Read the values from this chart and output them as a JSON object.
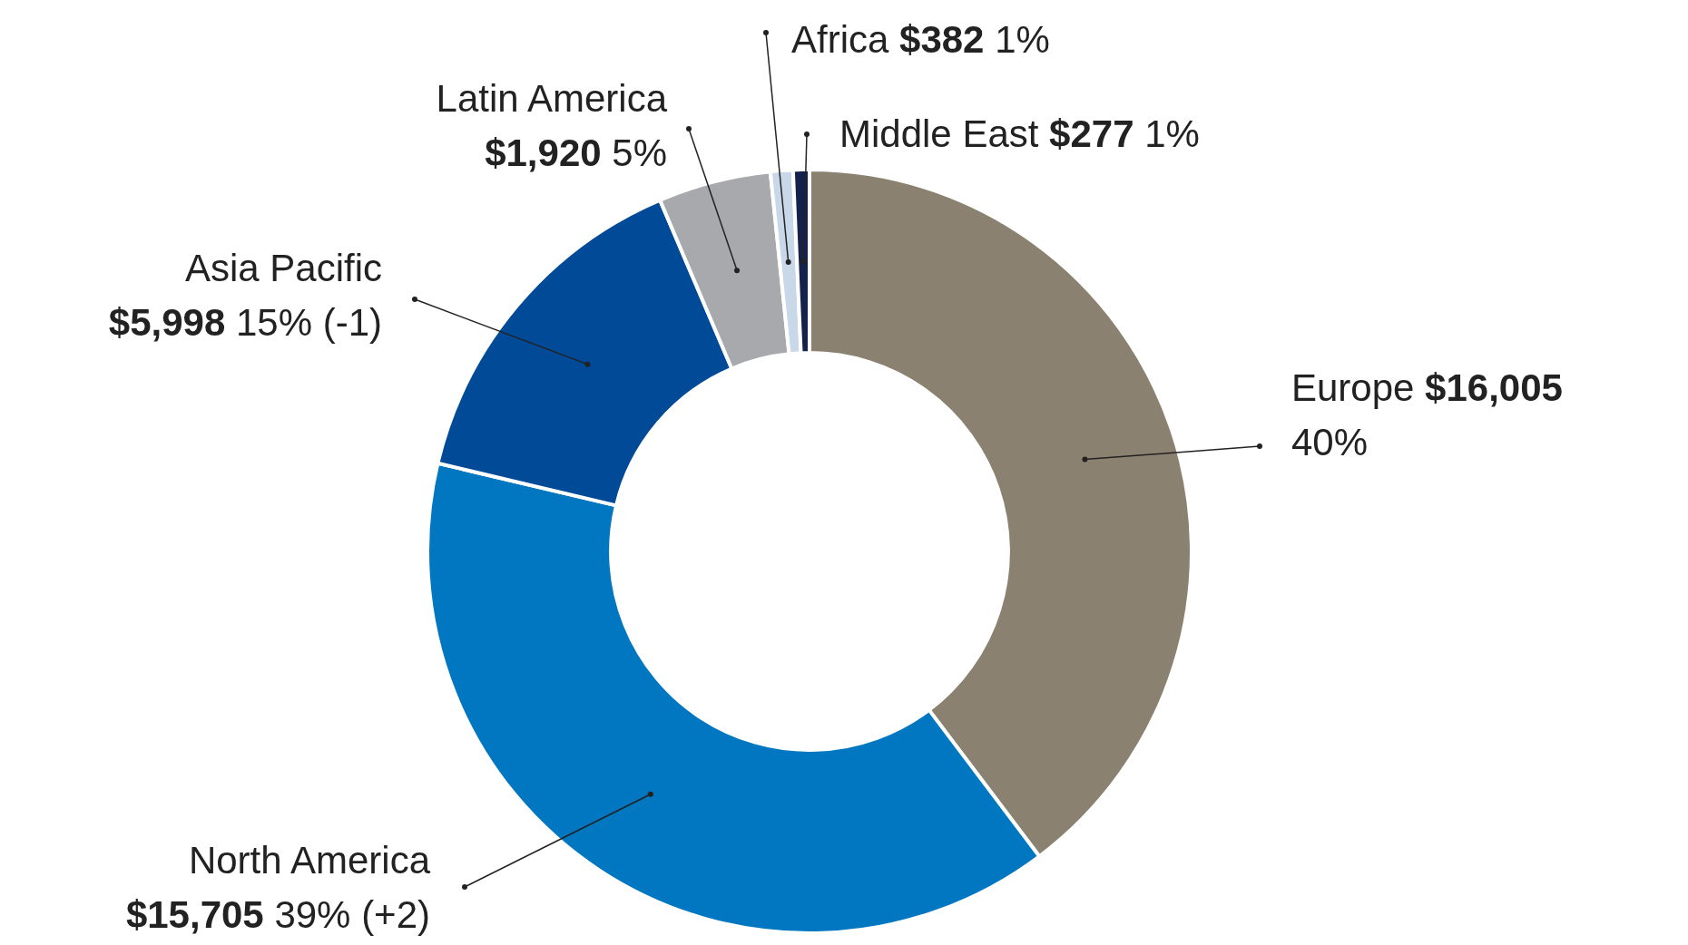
{
  "chart_data": {
    "type": "donut",
    "categories": [
      "Europe",
      "North America",
      "Asia Pacific",
      "Latin America",
      "Africa",
      "Middle East"
    ],
    "values": [
      16005,
      15705,
      5998,
      1920,
      382,
      277
    ],
    "colors": [
      "#8b8170",
      "#0077c0",
      "#004a97",
      "#a7a9ac",
      "#c8d8e8",
      "#14214a"
    ],
    "value_labels": [
      "$16,005 40%",
      "$15,705 39% (+2)",
      "$5,998 15% (-1)",
      "$1,920 5%",
      "$382 1%",
      "$277 1%"
    ],
    "legend": false
  }
}
